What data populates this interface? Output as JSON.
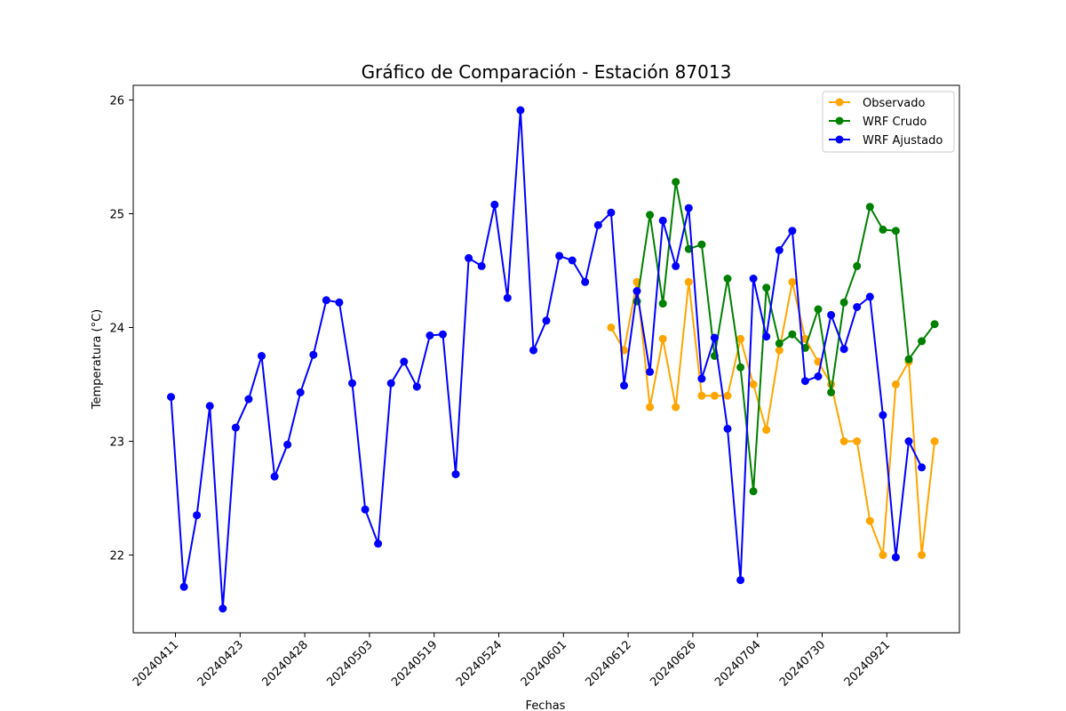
{
  "chart_data": {
    "type": "line",
    "title": "Gráfico de Comparación - Estación 87013",
    "xlabel": "Fechas",
    "ylabel": "Temperatura (°C)",
    "x_tick_labels": [
      "20240411",
      "20240423",
      "20240428",
      "20240503",
      "20240519",
      "20240524",
      "20240601",
      "20240612",
      "20240626",
      "20240704",
      "20240730",
      "20240921"
    ],
    "y_ticks": [
      22,
      23,
      24,
      25,
      26
    ],
    "ylim": [
      21.35,
      26.12
    ],
    "grid": false,
    "legend_position": "top-right",
    "series": [
      {
        "name": "Observado",
        "color": "#FFA500",
        "values": [
          null,
          null,
          null,
          null,
          null,
          null,
          null,
          null,
          null,
          null,
          null,
          null,
          null,
          null,
          null,
          null,
          null,
          null,
          null,
          null,
          null,
          null,
          null,
          null,
          null,
          null,
          null,
          null,
          null,
          null,
          null,
          null,
          null,
          null,
          24.0,
          23.8,
          24.4,
          23.3,
          23.9,
          23.3,
          24.4,
          23.4,
          23.4,
          23.4,
          23.9,
          23.5,
          23.1,
          23.8,
          24.4,
          23.9,
          23.7,
          23.5,
          23.0,
          23.0,
          22.3,
          22.0,
          23.5,
          23.7,
          22.0,
          23.0
        ]
      },
      {
        "name": "WRF Crudo",
        "color": "#008000",
        "values": [
          null,
          null,
          null,
          null,
          null,
          null,
          null,
          null,
          null,
          null,
          null,
          null,
          null,
          null,
          null,
          null,
          null,
          null,
          null,
          null,
          null,
          null,
          null,
          null,
          null,
          null,
          null,
          null,
          null,
          null,
          null,
          null,
          null,
          null,
          null,
          null,
          24.23,
          24.99,
          24.21,
          25.28,
          24.69,
          24.73,
          23.75,
          24.43,
          23.65,
          22.56,
          24.35,
          23.86,
          23.94,
          23.82,
          24.16,
          23.43,
          24.22,
          24.54,
          25.06,
          24.86,
          24.85,
          23.72,
          23.88,
          24.03
        ]
      },
      {
        "name": "WRF Ajustado",
        "color": "#0000FF",
        "values": [
          23.39,
          21.72,
          22.35,
          23.31,
          21.53,
          23.12,
          23.37,
          23.75,
          22.69,
          22.97,
          23.43,
          23.76,
          24.24,
          24.22,
          23.51,
          22.4,
          22.1,
          23.51,
          23.7,
          23.48,
          23.93,
          23.94,
          22.71,
          24.61,
          24.54,
          25.08,
          24.26,
          25.91,
          23.8,
          24.06,
          24.63,
          24.59,
          24.4,
          24.9,
          25.01,
          23.49,
          24.32,
          23.61,
          24.94,
          24.54,
          25.05,
          23.55,
          23.91,
          23.11,
          21.78,
          24.43,
          23.92,
          24.68,
          24.85,
          23.53,
          23.57,
          24.11,
          23.81,
          24.18,
          24.27,
          23.23,
          21.98,
          23.0,
          22.77,
          null
        ]
      }
    ]
  }
}
